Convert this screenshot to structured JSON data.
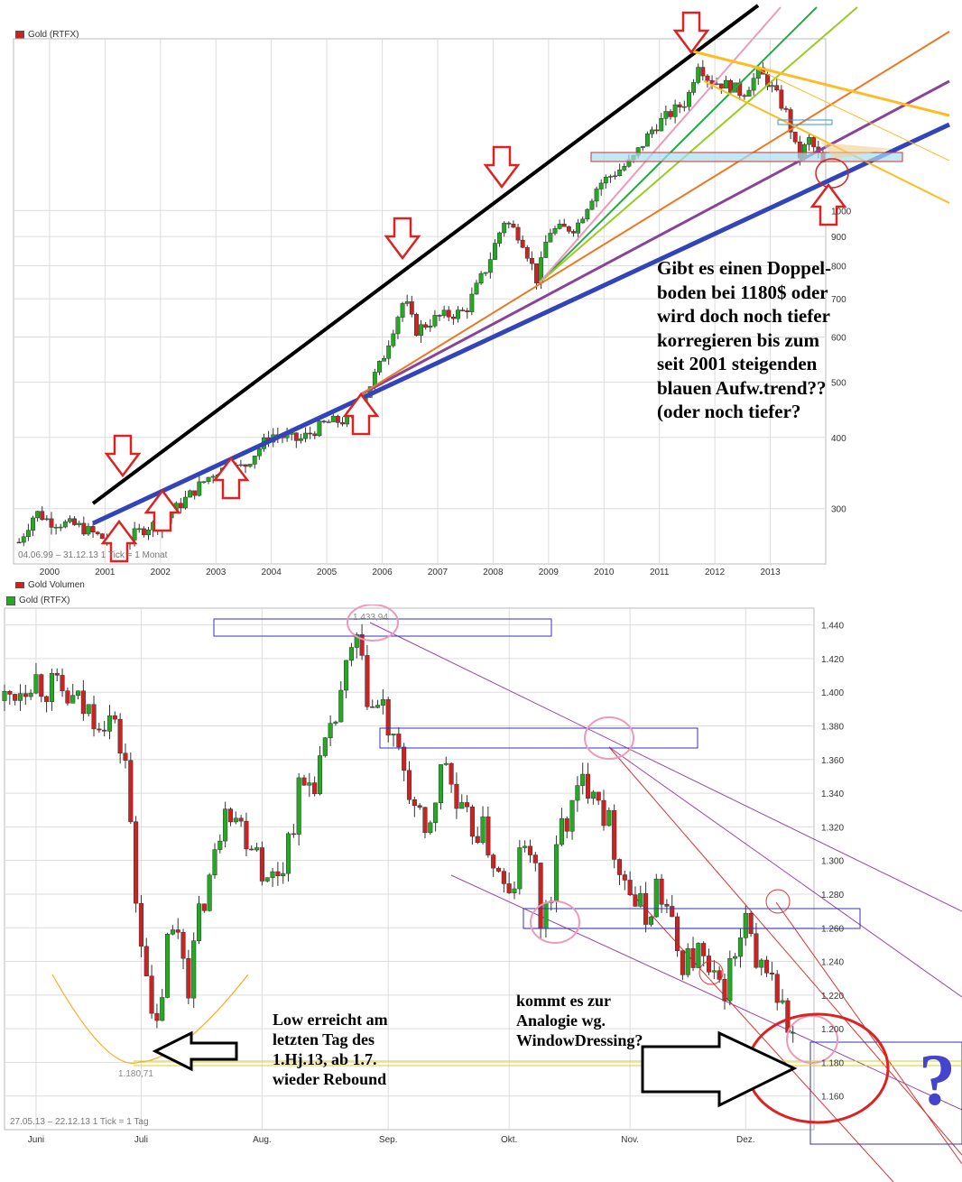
{
  "colors": {
    "up": "#22aa22",
    "down": "#cc2222",
    "grid": "#dddddd",
    "blue_trend": "#3344bb",
    "black_trend": "#000000",
    "arrow": "#dd2222",
    "box_top": "#88ccee",
    "box_bottom": "#3333bb",
    "ellipse": "#dd2222",
    "pink": "#ee99bb"
  },
  "top_panel": {
    "legend": "Gold (RTFX)",
    "range_text": "04.06.99 – 31.12.13   1 Tick = 1 Monat",
    "volume_label": "Gold Volumen",
    "note": "Gibt es einen Doppel-\nboden bei 1180$ oder\nwird doch noch tiefer\nkorregieren bis zum\nseit 2001 steigenden\nblauen Aufw.trend??\n(oder noch tiefer?"
  },
  "bottom_panel": {
    "legend": "Gold (RTFX)",
    "range_text": "27.05.13 – 22.12.13   1 Tick = 1 Tag",
    "high_label": "1.433,94",
    "low_label": "1.180,71",
    "note_low": "Low erreicht am\nletzten Tag des\n1.Hj.13, ab 1.7.\nwieder Rebound",
    "note_analogy": "kommt es zur\nAnalogie wg.\nWindowDressing?",
    "question": "?"
  },
  "chart_data": [
    {
      "type": "candlestick",
      "title": "Gold (RTFX)",
      "period": "04.06.99 – 31.12.13",
      "interval": "1 Monat",
      "x_ticks": [
        "2000",
        "2001",
        "2002",
        "2003",
        "2004",
        "2005",
        "2006",
        "2007",
        "2008",
        "2009",
        "2010",
        "2011",
        "2012",
        "2013"
      ],
      "y_scale": "log",
      "y_ticks": [
        300,
        400,
        500,
        600,
        700,
        800,
        900,
        1000
      ],
      "ylim": [
        240,
        2000
      ],
      "series": [
        {
          "values": [
            [
              1999.45,
              262
            ],
            [
              1999.75,
              296
            ],
            [
              2000.0,
              285
            ],
            [
              2000.5,
              280
            ],
            [
              2001.0,
              265
            ],
            [
              2001.3,
              262
            ],
            [
              2001.8,
              280
            ],
            [
              2002.0,
              282
            ],
            [
              2002.5,
              315
            ],
            [
              2003.0,
              350
            ],
            [
              2003.5,
              355
            ],
            [
              2004.0,
              405
            ],
            [
              2004.5,
              395
            ],
            [
              2005.0,
              425
            ],
            [
              2005.5,
              430
            ],
            [
              2006.0,
              545
            ],
            [
              2006.4,
              700
            ],
            [
              2006.6,
              615
            ],
            [
              2007.0,
              650
            ],
            [
              2007.5,
              665
            ],
            [
              2007.9,
              800
            ],
            [
              2008.2,
              960
            ],
            [
              2008.5,
              900
            ],
            [
              2008.8,
              750
            ],
            [
              2009.0,
              920
            ],
            [
              2009.5,
              935
            ],
            [
              2009.9,
              1110
            ],
            [
              2010.5,
              1220
            ],
            [
              2010.9,
              1400
            ],
            [
              2011.5,
              1560
            ],
            [
              2011.7,
              1820
            ],
            [
              2011.9,
              1690
            ],
            [
              2012.3,
              1650
            ],
            [
              2012.5,
              1600
            ],
            [
              2012.8,
              1750
            ],
            [
              2012.95,
              1680
            ],
            [
              2013.1,
              1600
            ],
            [
              2013.3,
              1470
            ],
            [
              2013.5,
              1230
            ],
            [
              2013.7,
              1330
            ],
            [
              2013.95,
              1205
            ]
          ]
        }
      ],
      "annotations": [
        "blue uptrend since 2001",
        "black upper channel line",
        "fan trendlines",
        "red arrows at touch points"
      ]
    },
    {
      "type": "candlestick",
      "title": "Gold (RTFX)",
      "period": "27.05.13 – 22.12.13",
      "interval": "1 Tag",
      "x_ticks": [
        "Juni",
        "Juli",
        "Aug.",
        "Sep.",
        "Okt.",
        "Nov.",
        "Dez."
      ],
      "y_ticks": [
        1160,
        1180,
        1200,
        1220,
        1240,
        1260,
        1280,
        1300,
        1320,
        1340,
        1360,
        1380,
        1400,
        1420,
        1440
      ],
      "ylim": [
        1140,
        1450
      ],
      "high": 1433.94,
      "low": 1180.71,
      "series": [
        {
          "values": [
            [
              0,
              1395
            ],
            [
              5,
              1410
            ],
            [
              10,
              1400
            ],
            [
              15,
              1390
            ],
            [
              20,
              1385
            ],
            [
              23,
              1360
            ],
            [
              25,
              1275
            ],
            [
              27,
              1240
            ],
            [
              28,
              1200
            ],
            [
              29,
              1198
            ],
            [
              31,
              1250
            ],
            [
              33,
              1260
            ],
            [
              35,
              1230
            ],
            [
              38,
              1280
            ],
            [
              40,
              1300
            ],
            [
              42,
              1340
            ],
            [
              45,
              1320
            ],
            [
              48,
              1310
            ],
            [
              50,
              1285
            ],
            [
              53,
              1300
            ],
            [
              56,
              1340
            ],
            [
              59,
              1350
            ],
            [
              62,
              1370
            ],
            [
              64,
              1400
            ],
            [
              66,
              1420
            ],
            [
              67,
              1430
            ],
            [
              68,
              1410
            ],
            [
              70,
              1390
            ],
            [
              72,
              1390
            ],
            [
              74,
              1365
            ],
            [
              76,
              1355
            ],
            [
              78,
              1330
            ],
            [
              80,
              1310
            ],
            [
              82,
              1340
            ],
            [
              84,
              1360
            ],
            [
              86,
              1330
            ],
            [
              88,
              1320
            ],
            [
              90,
              1320
            ],
            [
              92,
              1310
            ],
            [
              94,
              1290
            ],
            [
              96,
              1275
            ],
            [
              98,
              1300
            ],
            [
              100,
              1310
            ],
            [
              102,
              1265
            ],
            [
              104,
              1280
            ],
            [
              106,
              1320
            ],
            [
              108,
              1330
            ],
            [
              110,
              1345
            ],
            [
              112,
              1350
            ],
            [
              114,
              1330
            ],
            [
              116,
              1310
            ],
            [
              118,
              1290
            ],
            [
              120,
              1275
            ],
            [
              122,
              1265
            ],
            [
              124,
              1285
            ],
            [
              126,
              1270
            ],
            [
              128,
              1245
            ],
            [
              130,
              1240
            ],
            [
              132,
              1245
            ],
            [
              134,
              1230
            ],
            [
              136,
              1220
            ],
            [
              138,
              1235
            ],
            [
              140,
              1250
            ],
            [
              141,
              1265
            ],
            [
              143,
              1230
            ],
            [
              145,
              1240
            ],
            [
              147,
              1220
            ],
            [
              149,
              1200
            ],
            [
              150,
              1195
            ]
          ]
        }
      ]
    }
  ]
}
